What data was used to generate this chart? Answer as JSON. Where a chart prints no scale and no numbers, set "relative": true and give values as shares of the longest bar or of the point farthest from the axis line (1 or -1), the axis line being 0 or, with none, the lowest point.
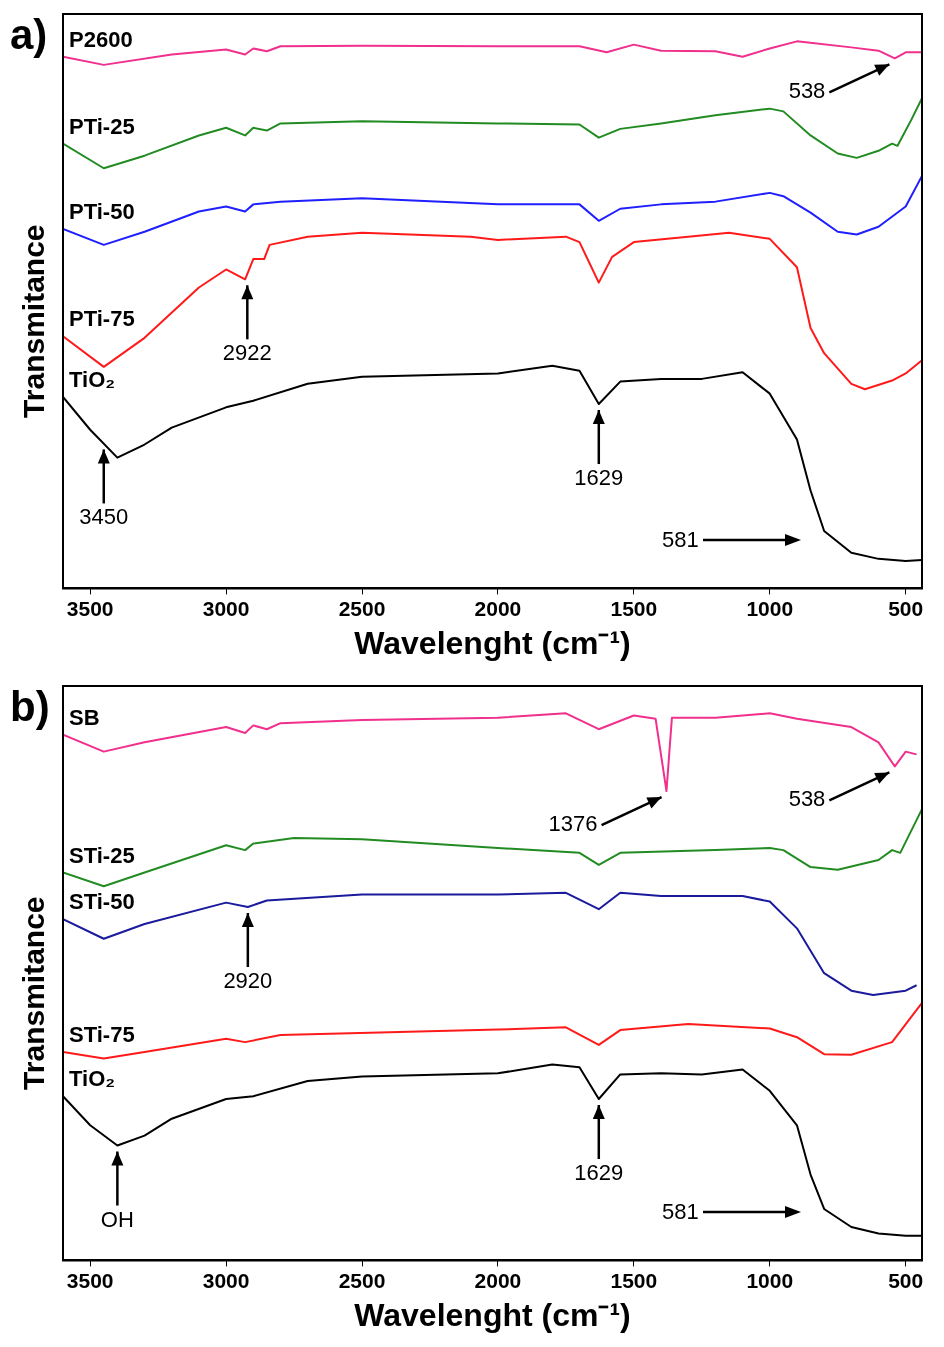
{
  "chart_data": [
    {
      "type": "line",
      "title": "a)",
      "xlabel": "Wavelenght (cm⁻¹)",
      "ylabel": "Transmitance",
      "relative": true,
      "xlim": [
        3600,
        440
      ],
      "xticks": [
        3500,
        3000,
        2500,
        2000,
        1500,
        1000,
        500
      ],
      "grid": false,
      "legend": false,
      "marker": "none",
      "series": [
        {
          "name": "P2600",
          "color": "#f0308c",
          "x": [
            3600,
            3450,
            3200,
            3000,
            2930,
            2900,
            2850,
            2800,
            2500,
            2000,
            1700,
            1600,
            1500,
            1400,
            1200,
            1100,
            1000,
            900,
            700,
            600,
            540,
            500,
            440
          ],
          "values": [
            0.972,
            0.957,
            0.976,
            0.985,
            0.976,
            0.987,
            0.982,
            0.991,
            0.992,
            0.991,
            0.991,
            0.98,
            0.994,
            0.983,
            0.982,
            0.972,
            0.987,
            1,
            0.989,
            0.983,
            0.969,
            0.98,
            0.98
          ]
        },
        {
          "name": "PTi-25",
          "color": "#228b22",
          "x": [
            3600,
            3450,
            3300,
            3100,
            3000,
            2930,
            2900,
            2850,
            2800,
            2500,
            2000,
            1700,
            1629,
            1550,
            1400,
            1200,
            1000,
            950,
            850,
            750,
            680,
            600,
            550,
            530,
            480,
            440
          ],
          "values": [
            0.813,
            0.768,
            0.791,
            0.828,
            0.842,
            0.828,
            0.842,
            0.837,
            0.85,
            0.854,
            0.85,
            0.848,
            0.824,
            0.84,
            0.85,
            0.865,
            0.877,
            0.872,
            0.828,
            0.795,
            0.787,
            0.8,
            0.813,
            0.809,
            0.856,
            0.896
          ]
        },
        {
          "name": "PTi-50",
          "color": "#1f1fff",
          "x": [
            3600,
            3450,
            3300,
            3100,
            3000,
            2930,
            2900,
            2800,
            2500,
            2000,
            1700,
            1629,
            1550,
            1400,
            1200,
            1000,
            950,
            850,
            750,
            680,
            600,
            500,
            440
          ],
          "values": [
            0.657,
            0.628,
            0.652,
            0.689,
            0.698,
            0.689,
            0.702,
            0.707,
            0.713,
            0.702,
            0.702,
            0.672,
            0.694,
            0.702,
            0.707,
            0.723,
            0.717,
            0.687,
            0.652,
            0.647,
            0.661,
            0.698,
            0.754
          ]
        },
        {
          "name": "PTi-75",
          "color": "#ff1a1a",
          "x": [
            3600,
            3450,
            3300,
            3100,
            3000,
            2930,
            2900,
            2860,
            2840,
            2700,
            2500,
            2100,
            2000,
            1750,
            1700,
            1629,
            1580,
            1500,
            1300,
            1150,
            1000,
            900,
            850,
            800,
            700,
            650,
            550,
            500,
            440
          ],
          "values": [
            0.461,
            0.405,
            0.458,
            0.55,
            0.583,
            0.565,
            0.602,
            0.602,
            0.628,
            0.643,
            0.65,
            0.643,
            0.637,
            0.643,
            0.633,
            0.559,
            0.606,
            0.633,
            0.643,
            0.65,
            0.639,
            0.587,
            0.476,
            0.43,
            0.374,
            0.364,
            0.38,
            0.393,
            0.417
          ]
        },
        {
          "name": "TiO₂",
          "color": "#000000",
          "x": [
            3600,
            3500,
            3400,
            3300,
            3200,
            3000,
            2900,
            2700,
            2500,
            2000,
            1800,
            1700,
            1629,
            1550,
            1400,
            1250,
            1100,
            1000,
            900,
            850,
            800,
            700,
            600,
            500,
            440
          ],
          "values": [
            0.35,
            0.29,
            0.239,
            0.263,
            0.294,
            0.331,
            0.343,
            0.374,
            0.387,
            0.393,
            0.407,
            0.398,
            0.337,
            0.378,
            0.383,
            0.383,
            0.395,
            0.356,
            0.272,
            0.179,
            0.105,
            0.065,
            0.054,
            0.05,
            0.052
          ]
        }
      ],
      "annotations": [
        {
          "text": "538",
          "x": 538,
          "y": 0.969
        },
        {
          "text": "2922",
          "x": 2922,
          "y": 0.565
        },
        {
          "text": "3450",
          "x": 3450,
          "y": 0.265
        },
        {
          "text": "1629",
          "x": 1629,
          "y": 0.337
        },
        "581"
      ]
    },
    {
      "type": "line",
      "title": "b)",
      "xlabel": "Wavelenght (cm⁻¹)",
      "ylabel": "Transmitance",
      "relative": true,
      "xlim": [
        3600,
        440
      ],
      "xticks": [
        3500,
        3000,
        2500,
        2000,
        1500,
        1000,
        500
      ],
      "grid": false,
      "legend": false,
      "marker": "none",
      "series": [
        {
          "name": "SB",
          "color": "#f0308c",
          "x": [
            3600,
            3450,
            3300,
            3000,
            2930,
            2900,
            2850,
            2800,
            2500,
            2000,
            1750,
            1629,
            1500,
            1420,
            1380,
            1360,
            1200,
            1000,
            900,
            700,
            600,
            540,
            500,
            460
          ],
          "values": [
            0.961,
            0.93,
            0.947,
            0.975,
            0.964,
            0.978,
            0.971,
            0.982,
            0.988,
            0.992,
            1,
            0.971,
            0.996,
            0.99,
            0.858,
            0.992,
            0.992,
            1,
            0.99,
            0.975,
            0.947,
            0.903,
            0.93,
            0.925
          ]
        },
        {
          "name": "STi-25",
          "color": "#228b22",
          "x": [
            3600,
            3450,
            3300,
            3000,
            2930,
            2900,
            2750,
            2500,
            2000,
            1700,
            1629,
            1550,
            1200,
            1000,
            950,
            850,
            750,
            600,
            550,
            520,
            440
          ],
          "values": [
            0.709,
            0.684,
            0.709,
            0.759,
            0.75,
            0.762,
            0.772,
            0.77,
            0.754,
            0.745,
            0.723,
            0.745,
            0.75,
            0.754,
            0.75,
            0.719,
            0.714,
            0.732,
            0.75,
            0.745,
            0.825
          ]
        },
        {
          "name": "STi-50",
          "color": "#1a1a9c",
          "x": [
            3600,
            3450,
            3300,
            3000,
            2920,
            2850,
            2500,
            2000,
            1750,
            1629,
            1550,
            1400,
            1100,
            1000,
            900,
            800,
            700,
            620,
            500,
            460
          ],
          "values": [
            0.624,
            0.588,
            0.615,
            0.654,
            0.646,
            0.658,
            0.669,
            0.669,
            0.672,
            0.642,
            0.672,
            0.666,
            0.666,
            0.656,
            0.607,
            0.525,
            0.493,
            0.485,
            0.493,
            0.503
          ]
        },
        {
          "name": "STi-75",
          "color": "#ff1a1a",
          "x": [
            3600,
            3450,
            3300,
            3000,
            2930,
            2800,
            2000,
            1750,
            1629,
            1550,
            1300,
            1000,
            900,
            800,
            700,
            550,
            440
          ],
          "values": [
            0.381,
            0.369,
            0.381,
            0.405,
            0.399,
            0.412,
            0.422,
            0.426,
            0.394,
            0.421,
            0.432,
            0.424,
            0.408,
            0.377,
            0.376,
            0.399,
            0.471
          ]
        },
        {
          "name": "TiO₂",
          "color": "#000000",
          "x": [
            3600,
            3500,
            3400,
            3300,
            3200,
            3000,
            2900,
            2700,
            2500,
            2000,
            1800,
            1700,
            1629,
            1550,
            1400,
            1250,
            1100,
            1000,
            900,
            850,
            800,
            700,
            600,
            500,
            440
          ],
          "values": [
            0.3,
            0.247,
            0.21,
            0.228,
            0.259,
            0.295,
            0.3,
            0.328,
            0.336,
            0.342,
            0.358,
            0.353,
            0.295,
            0.34,
            0.342,
            0.34,
            0.349,
            0.31,
            0.247,
            0.157,
            0.094,
            0.061,
            0.049,
            0.045,
            0.045
          ]
        }
      ],
      "annotations": [
        {
          "text": "1376",
          "x": 1376,
          "y": 0.858
        },
        {
          "text": "538",
          "x": 538,
          "y": 0.903
        },
        {
          "text": "2920",
          "x": 2920,
          "y": 0.646
        },
        {
          "text": "OH",
          "x": 3400,
          "y": 0.21
        },
        {
          "text": "1629",
          "x": 1629,
          "y": 0.295
        },
        "581"
      ]
    }
  ]
}
